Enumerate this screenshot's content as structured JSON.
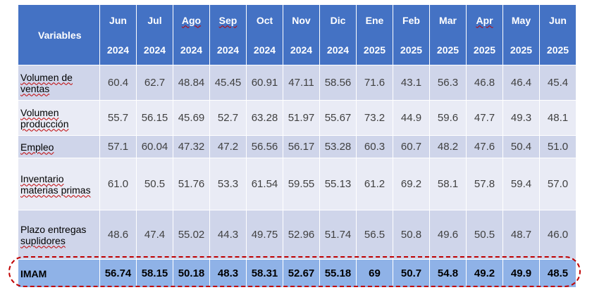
{
  "table": {
    "header_label": "Variables",
    "columns": [
      {
        "month": "Jun",
        "year": "2024"
      },
      {
        "month": "Jul",
        "year": "2024"
      },
      {
        "month": "Ago",
        "year": "2024"
      },
      {
        "month": "Sep",
        "year": "2024"
      },
      {
        "month": "Oct",
        "year": "2024"
      },
      {
        "month": "Nov",
        "year": "2024"
      },
      {
        "month": "Dic",
        "year": "2024"
      },
      {
        "month": "Ene",
        "year": "2025"
      },
      {
        "month": "Feb",
        "year": "2025"
      },
      {
        "month": "Mar",
        "year": "2025"
      },
      {
        "month": "Apr",
        "year": "2025"
      },
      {
        "month": "May",
        "year": "2025"
      },
      {
        "month": "Jun",
        "year": "2025"
      }
    ],
    "rows": [
      {
        "label_lines": [
          "Volumen de",
          "ventas"
        ],
        "values": [
          "60.4",
          "62.7",
          "48.84",
          "45.45",
          "60.91",
          "47.11",
          "58.56",
          "71.6",
          "43.1",
          "56.3",
          "46.8",
          "46.4",
          "45.4"
        ]
      },
      {
        "label_lines": [
          "Volumen",
          "producción"
        ],
        "values": [
          "55.7",
          "56.15",
          "45.69",
          "52.7",
          "63.28",
          "51.97",
          "55.67",
          "73.2",
          "44.9",
          "59.6",
          "47.7",
          "49.3",
          "48.1"
        ]
      },
      {
        "label_lines": [
          "Empleo"
        ],
        "values": [
          "57.1",
          "60.04",
          "47.32",
          "47.2",
          "56.56",
          "56.17",
          "53.28",
          "60.3",
          "60.7",
          "48.2",
          "47.6",
          "50.4",
          "51.0"
        ]
      },
      {
        "label_lines": [
          "Inventario",
          "materias primas"
        ],
        "values": [
          "61.0",
          "50.5",
          "51.76",
          "53.3",
          "61.54",
          "59.55",
          "55.13",
          "61.2",
          "69.2",
          "58.1",
          "57.8",
          "59.4",
          "57.0"
        ]
      },
      {
        "label_lines": [
          "Plazo entregas",
          "suplidores"
        ],
        "values": [
          "48.6",
          "47.4",
          "55.02",
          "44.3",
          "49.75",
          "52.96",
          "51.74",
          "56.5",
          "50.8",
          "49.6",
          "50.5",
          "48.7",
          "46.0"
        ]
      },
      {
        "label_lines": [
          "IMAM"
        ],
        "values": [
          "56.74",
          "58.15",
          "50.18",
          "48.3",
          "58.31",
          "52.67",
          "55.18",
          "69",
          "50.7",
          "54.8",
          "49.2",
          "49.9",
          "48.5"
        ]
      }
    ]
  },
  "colors": {
    "header_bg": "#4472c4",
    "row_dark": "#cfd5ea",
    "row_light": "#e9ebf5",
    "total_row": "#8fb2e7",
    "highlight_border": "#c00000"
  }
}
